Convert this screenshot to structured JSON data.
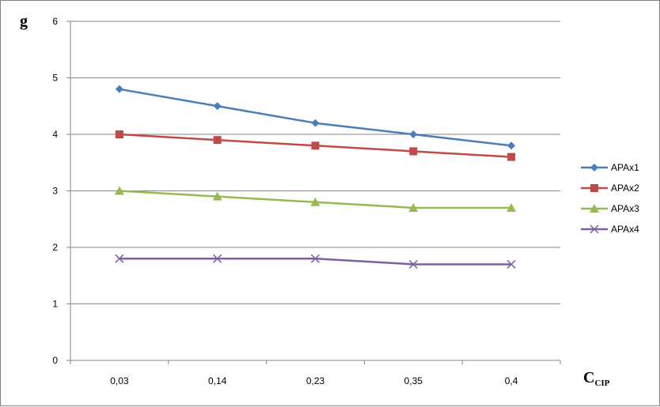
{
  "chart_data": {
    "type": "line",
    "title": "",
    "ylabel": "g",
    "xlabel_main": "C",
    "xlabel_sub": "CIP",
    "categories": [
      "0,03",
      "0,14",
      "0,23",
      "0,35",
      "0,4"
    ],
    "ylim": [
      0,
      6
    ],
    "yticks": [
      0,
      1,
      2,
      3,
      4,
      5,
      6
    ],
    "grid": "horizontal",
    "legend_position": "right",
    "series": [
      {
        "name": "APAx1",
        "values": [
          4.8,
          4.5,
          4.2,
          4.0,
          3.8
        ],
        "color": "#4a7ebb",
        "marker": "diamond"
      },
      {
        "name": "APAx2",
        "values": [
          4.0,
          3.9,
          3.8,
          3.7,
          3.6
        ],
        "color": "#be4b48",
        "marker": "square"
      },
      {
        "name": "APAx3",
        "values": [
          3.0,
          2.9,
          2.8,
          2.7,
          2.7
        ],
        "color": "#98b954",
        "marker": "triangle"
      },
      {
        "name": "APAx4",
        "values": [
          1.8,
          1.8,
          1.8,
          1.7,
          1.7
        ],
        "color": "#7d60a0",
        "marker": "x"
      }
    ]
  }
}
